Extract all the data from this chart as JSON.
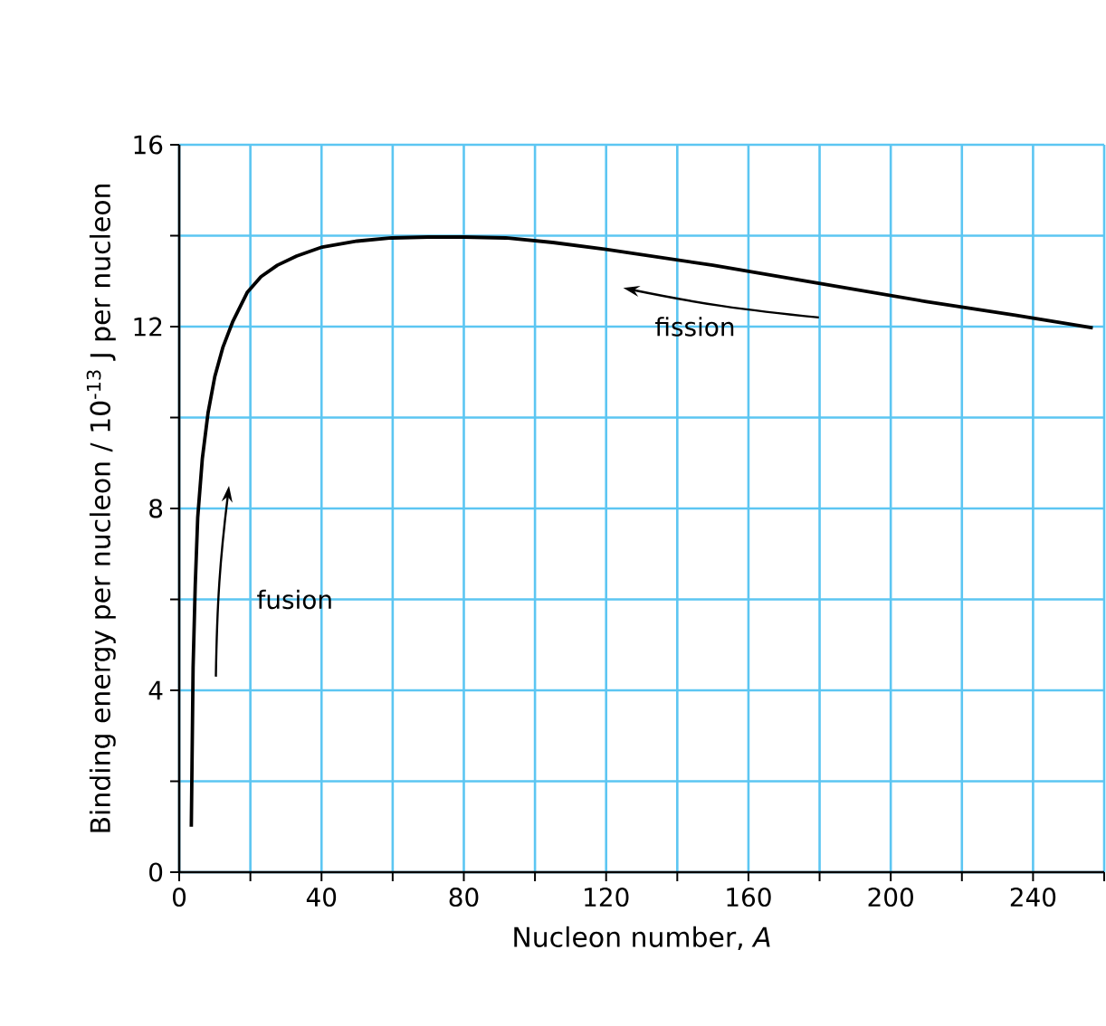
{
  "chart_data": {
    "type": "line",
    "xlabel": "Nucleon number, *A*",
    "ylabel": "Binding energy per nucleon / 10$^{-13}$ J per nucleon",
    "annotations": [
      "fusion",
      "fission"
    ],
    "series": [
      {
        "color": "#000000",
        "x": [
          3.4,
          3.9,
          4.5,
          5.2,
          6.5,
          8.1,
          10,
          12.3,
          15,
          19.1,
          23,
          27.6,
          33,
          40.2,
          50,
          59.7,
          70,
          80,
          91.8,
          105,
          120,
          150,
          179.8,
          210,
          235,
          256.8
        ],
        "values": [
          1.0,
          4.5,
          6.3,
          7.8,
          9.1,
          10.1,
          10.9,
          11.55,
          12.1,
          12.75,
          13.1,
          13.35,
          13.55,
          13.75,
          13.88,
          13.95,
          13.97,
          13.97,
          13.95,
          13.85,
          13.7,
          13.35,
          12.95,
          12.55,
          12.25,
          11.97
        ]
      }
    ],
    "xlim": [
      0,
      260
    ],
    "ylim": [
      0,
      16
    ],
    "xticks": [
      0,
      {
        "value": 20,
        "label": null
      },
      40,
      {
        "value": 60,
        "label": null
      },
      80,
      {
        "value": 100,
        "label": null
      },
      120,
      {
        "value": 140,
        "label": null
      },
      160,
      {
        "value": 180,
        "label": null
      },
      200,
      {
        "value": 220,
        "label": null
      },
      240,
      {
        "value": 260,
        "label": null
      }
    ],
    "yticks": [
      0,
      {
        "value": 2,
        "label": null
      },
      4,
      {
        "value": 6,
        "label": null
      },
      8,
      {
        "value": 10,
        "label": null
      },
      12,
      {
        "value": 14,
        "label": null
      },
      16
    ],
    "grid": true
  }
}
